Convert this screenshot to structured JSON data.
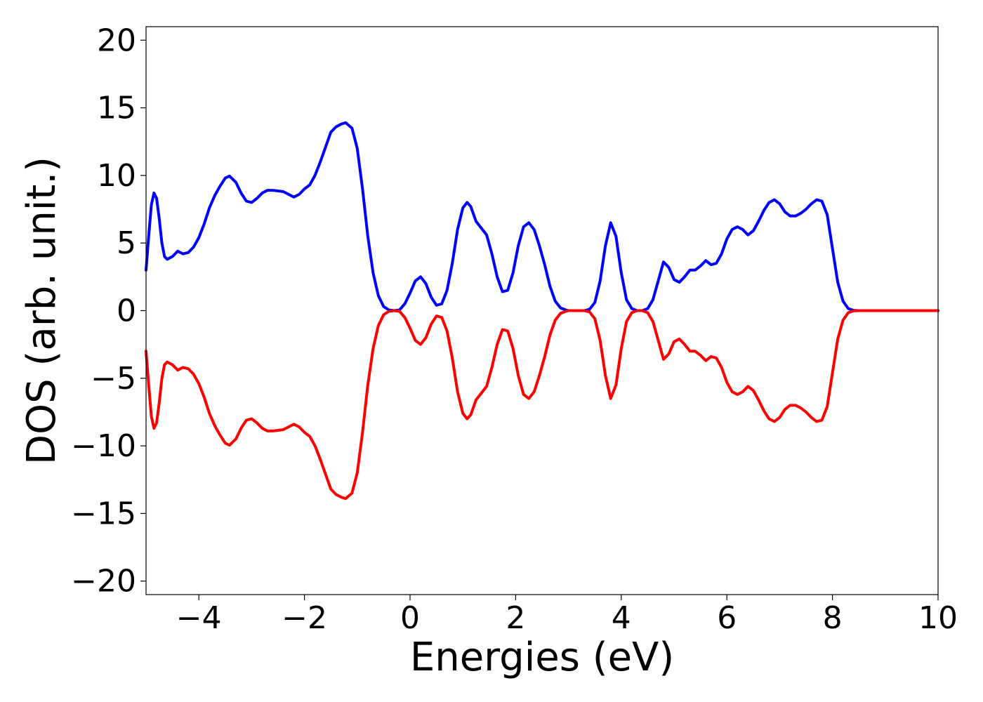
{
  "chart_data": {
    "type": "line",
    "title": "",
    "xlabel": "Energies (eV)",
    "ylabel": "DOS (arb. unit.)",
    "xlim": [
      -5,
      10
    ],
    "ylim": [
      -21,
      21
    ],
    "x_ticks": [
      -4,
      -2,
      0,
      2,
      4,
      6,
      8,
      10
    ],
    "x_tick_labels": [
      "−4",
      "−2",
      "0",
      "2",
      "4",
      "6",
      "8",
      "10"
    ],
    "y_ticks": [
      20,
      15,
      10,
      5,
      0,
      -5,
      -10,
      -15,
      -20
    ],
    "y_tick_labels": [
      "20",
      "15",
      "10",
      "5",
      "0",
      "−5",
      "−10",
      "−15",
      "−20"
    ],
    "grid": false,
    "legend": "none",
    "series": [
      {
        "color": "#0000ff",
        "points": [
          [
            -5.0,
            3.0
          ],
          [
            -4.95,
            5.5
          ],
          [
            -4.9,
            7.8
          ],
          [
            -4.85,
            8.7
          ],
          [
            -4.8,
            8.3
          ],
          [
            -4.75,
            6.8
          ],
          [
            -4.7,
            5.0
          ],
          [
            -4.65,
            4.0
          ],
          [
            -4.6,
            3.8
          ],
          [
            -4.5,
            4.0
          ],
          [
            -4.4,
            4.4
          ],
          [
            -4.3,
            4.2
          ],
          [
            -4.2,
            4.3
          ],
          [
            -4.1,
            4.7
          ],
          [
            -4.0,
            5.4
          ],
          [
            -3.9,
            6.4
          ],
          [
            -3.8,
            7.6
          ],
          [
            -3.7,
            8.5
          ],
          [
            -3.6,
            9.2
          ],
          [
            -3.5,
            9.8
          ],
          [
            -3.42,
            9.95
          ],
          [
            -3.3,
            9.5
          ],
          [
            -3.2,
            8.7
          ],
          [
            -3.1,
            8.1
          ],
          [
            -3.0,
            8.0
          ],
          [
            -2.9,
            8.3
          ],
          [
            -2.8,
            8.7
          ],
          [
            -2.7,
            8.9
          ],
          [
            -2.6,
            8.9
          ],
          [
            -2.5,
            8.85
          ],
          [
            -2.4,
            8.8
          ],
          [
            -2.3,
            8.6
          ],
          [
            -2.2,
            8.4
          ],
          [
            -2.1,
            8.6
          ],
          [
            -2.0,
            9.0
          ],
          [
            -1.9,
            9.3
          ],
          [
            -1.8,
            10.0
          ],
          [
            -1.7,
            11.0
          ],
          [
            -1.6,
            12.1
          ],
          [
            -1.5,
            13.2
          ],
          [
            -1.4,
            13.6
          ],
          [
            -1.3,
            13.8
          ],
          [
            -1.22,
            13.9
          ],
          [
            -1.1,
            13.5
          ],
          [
            -1.0,
            12.0
          ],
          [
            -0.9,
            9.0
          ],
          [
            -0.8,
            5.5
          ],
          [
            -0.7,
            2.8
          ],
          [
            -0.6,
            1.1
          ],
          [
            -0.5,
            0.3
          ],
          [
            -0.4,
            0.05
          ],
          [
            -0.3,
            0.0
          ],
          [
            -0.2,
            0.05
          ],
          [
            -0.1,
            0.5
          ],
          [
            0.0,
            1.3
          ],
          [
            0.1,
            2.2
          ],
          [
            0.2,
            2.5
          ],
          [
            0.3,
            2.0
          ],
          [
            0.4,
            1.0
          ],
          [
            0.5,
            0.4
          ],
          [
            0.6,
            0.5
          ],
          [
            0.7,
            1.5
          ],
          [
            0.8,
            3.5
          ],
          [
            0.9,
            6.0
          ],
          [
            1.0,
            7.6
          ],
          [
            1.08,
            8.0
          ],
          [
            1.15,
            7.7
          ],
          [
            1.25,
            6.6
          ],
          [
            1.35,
            6.1
          ],
          [
            1.45,
            5.6
          ],
          [
            1.55,
            4.2
          ],
          [
            1.65,
            2.5
          ],
          [
            1.75,
            1.4
          ],
          [
            1.85,
            1.5
          ],
          [
            1.95,
            2.8
          ],
          [
            2.05,
            4.8
          ],
          [
            2.15,
            6.2
          ],
          [
            2.25,
            6.5
          ],
          [
            2.35,
            6.0
          ],
          [
            2.45,
            4.8
          ],
          [
            2.55,
            3.4
          ],
          [
            2.65,
            1.8
          ],
          [
            2.75,
            0.7
          ],
          [
            2.85,
            0.2
          ],
          [
            2.95,
            0.05
          ],
          [
            3.0,
            0.0
          ],
          [
            3.1,
            0.0
          ],
          [
            3.2,
            0.0
          ],
          [
            3.3,
            0.0
          ],
          [
            3.4,
            0.1
          ],
          [
            3.5,
            0.6
          ],
          [
            3.6,
            2.2
          ],
          [
            3.7,
            4.8
          ],
          [
            3.8,
            6.5
          ],
          [
            3.9,
            5.5
          ],
          [
            4.0,
            2.8
          ],
          [
            4.1,
            0.8
          ],
          [
            4.2,
            0.15
          ],
          [
            4.3,
            0.0
          ],
          [
            4.4,
            0.0
          ],
          [
            4.5,
            0.15
          ],
          [
            4.6,
            0.8
          ],
          [
            4.7,
            2.2
          ],
          [
            4.8,
            3.6
          ],
          [
            4.9,
            3.2
          ],
          [
            5.0,
            2.3
          ],
          [
            5.1,
            2.1
          ],
          [
            5.2,
            2.5
          ],
          [
            5.3,
            3.0
          ],
          [
            5.4,
            3.0
          ],
          [
            5.5,
            3.3
          ],
          [
            5.6,
            3.7
          ],
          [
            5.7,
            3.4
          ],
          [
            5.8,
            3.5
          ],
          [
            5.9,
            4.2
          ],
          [
            6.0,
            5.3
          ],
          [
            6.1,
            6.0
          ],
          [
            6.2,
            6.2
          ],
          [
            6.3,
            6.0
          ],
          [
            6.4,
            5.6
          ],
          [
            6.5,
            5.9
          ],
          [
            6.6,
            6.6
          ],
          [
            6.7,
            7.4
          ],
          [
            6.8,
            8.0
          ],
          [
            6.9,
            8.2
          ],
          [
            7.0,
            7.9
          ],
          [
            7.1,
            7.3
          ],
          [
            7.2,
            7.0
          ],
          [
            7.3,
            7.0
          ],
          [
            7.4,
            7.2
          ],
          [
            7.5,
            7.5
          ],
          [
            7.6,
            7.9
          ],
          [
            7.7,
            8.2
          ],
          [
            7.8,
            8.1
          ],
          [
            7.9,
            7.1
          ],
          [
            8.0,
            4.6
          ],
          [
            8.1,
            2.1
          ],
          [
            8.2,
            0.7
          ],
          [
            8.3,
            0.15
          ],
          [
            8.4,
            0.02
          ],
          [
            8.5,
            0.0
          ],
          [
            9.0,
            0.0
          ],
          [
            10.0,
            0.0
          ]
        ]
      },
      {
        "color": "#ff0000",
        "points": [
          [
            -5.0,
            -3.0
          ],
          [
            -4.95,
            -5.5
          ],
          [
            -4.9,
            -7.8
          ],
          [
            -4.85,
            -8.7
          ],
          [
            -4.8,
            -8.3
          ],
          [
            -4.75,
            -6.8
          ],
          [
            -4.7,
            -5.0
          ],
          [
            -4.65,
            -4.0
          ],
          [
            -4.6,
            -3.8
          ],
          [
            -4.5,
            -4.0
          ],
          [
            -4.4,
            -4.4
          ],
          [
            -4.3,
            -4.2
          ],
          [
            -4.2,
            -4.3
          ],
          [
            -4.1,
            -4.7
          ],
          [
            -4.0,
            -5.4
          ],
          [
            -3.9,
            -6.4
          ],
          [
            -3.8,
            -7.6
          ],
          [
            -3.7,
            -8.5
          ],
          [
            -3.6,
            -9.2
          ],
          [
            -3.5,
            -9.8
          ],
          [
            -3.42,
            -9.95
          ],
          [
            -3.3,
            -9.5
          ],
          [
            -3.2,
            -8.7
          ],
          [
            -3.1,
            -8.1
          ],
          [
            -3.0,
            -8.0
          ],
          [
            -2.9,
            -8.3
          ],
          [
            -2.8,
            -8.7
          ],
          [
            -2.7,
            -8.9
          ],
          [
            -2.6,
            -8.9
          ],
          [
            -2.5,
            -8.85
          ],
          [
            -2.4,
            -8.8
          ],
          [
            -2.3,
            -8.6
          ],
          [
            -2.2,
            -8.4
          ],
          [
            -2.1,
            -8.6
          ],
          [
            -2.0,
            -9.0
          ],
          [
            -1.9,
            -9.3
          ],
          [
            -1.8,
            -10.0
          ],
          [
            -1.7,
            -11.0
          ],
          [
            -1.6,
            -12.1
          ],
          [
            -1.5,
            -13.2
          ],
          [
            -1.4,
            -13.6
          ],
          [
            -1.3,
            -13.8
          ],
          [
            -1.22,
            -13.9
          ],
          [
            -1.1,
            -13.5
          ],
          [
            -1.0,
            -12.0
          ],
          [
            -0.9,
            -9.0
          ],
          [
            -0.8,
            -5.5
          ],
          [
            -0.7,
            -2.8
          ],
          [
            -0.6,
            -1.1
          ],
          [
            -0.5,
            -0.3
          ],
          [
            -0.4,
            -0.05
          ],
          [
            -0.3,
            0.0
          ],
          [
            -0.2,
            -0.05
          ],
          [
            -0.1,
            -0.5
          ],
          [
            0.0,
            -1.3
          ],
          [
            0.1,
            -2.2
          ],
          [
            0.2,
            -2.5
          ],
          [
            0.3,
            -2.0
          ],
          [
            0.4,
            -1.0
          ],
          [
            0.5,
            -0.4
          ],
          [
            0.6,
            -0.5
          ],
          [
            0.7,
            -1.5
          ],
          [
            0.8,
            -3.5
          ],
          [
            0.9,
            -6.0
          ],
          [
            1.0,
            -7.6
          ],
          [
            1.08,
            -8.0
          ],
          [
            1.15,
            -7.7
          ],
          [
            1.25,
            -6.6
          ],
          [
            1.35,
            -6.1
          ],
          [
            1.45,
            -5.6
          ],
          [
            1.55,
            -4.2
          ],
          [
            1.65,
            -2.5
          ],
          [
            1.75,
            -1.4
          ],
          [
            1.85,
            -1.5
          ],
          [
            1.95,
            -2.8
          ],
          [
            2.05,
            -4.8
          ],
          [
            2.15,
            -6.2
          ],
          [
            2.25,
            -6.5
          ],
          [
            2.35,
            -6.0
          ],
          [
            2.45,
            -4.8
          ],
          [
            2.55,
            -3.4
          ],
          [
            2.65,
            -1.8
          ],
          [
            2.75,
            -0.7
          ],
          [
            2.85,
            -0.2
          ],
          [
            2.95,
            -0.05
          ],
          [
            3.0,
            0.0
          ],
          [
            3.1,
            0.0
          ],
          [
            3.2,
            0.0
          ],
          [
            3.3,
            0.0
          ],
          [
            3.4,
            -0.1
          ],
          [
            3.5,
            -0.6
          ],
          [
            3.6,
            -2.2
          ],
          [
            3.7,
            -4.8
          ],
          [
            3.8,
            -6.5
          ],
          [
            3.9,
            -5.5
          ],
          [
            4.0,
            -2.8
          ],
          [
            4.1,
            -0.8
          ],
          [
            4.2,
            -0.15
          ],
          [
            4.3,
            0.0
          ],
          [
            4.4,
            0.0
          ],
          [
            4.5,
            -0.15
          ],
          [
            4.6,
            -0.8
          ],
          [
            4.7,
            -2.2
          ],
          [
            4.8,
            -3.6
          ],
          [
            4.9,
            -3.2
          ],
          [
            5.0,
            -2.3
          ],
          [
            5.1,
            -2.1
          ],
          [
            5.2,
            -2.5
          ],
          [
            5.3,
            -3.0
          ],
          [
            5.4,
            -3.0
          ],
          [
            5.5,
            -3.3
          ],
          [
            5.6,
            -3.7
          ],
          [
            5.7,
            -3.4
          ],
          [
            5.8,
            -3.5
          ],
          [
            5.9,
            -4.2
          ],
          [
            6.0,
            -5.3
          ],
          [
            6.1,
            -6.0
          ],
          [
            6.2,
            -6.2
          ],
          [
            6.3,
            -6.0
          ],
          [
            6.4,
            -5.6
          ],
          [
            6.5,
            -5.9
          ],
          [
            6.6,
            -6.6
          ],
          [
            6.7,
            -7.4
          ],
          [
            6.8,
            -8.0
          ],
          [
            6.9,
            -8.2
          ],
          [
            7.0,
            -7.9
          ],
          [
            7.1,
            -7.3
          ],
          [
            7.2,
            -7.0
          ],
          [
            7.3,
            -7.0
          ],
          [
            7.4,
            -7.2
          ],
          [
            7.5,
            -7.5
          ],
          [
            7.6,
            -7.9
          ],
          [
            7.7,
            -8.2
          ],
          [
            7.8,
            -8.1
          ],
          [
            7.9,
            -7.1
          ],
          [
            8.0,
            -4.6
          ],
          [
            8.1,
            -2.1
          ],
          [
            8.2,
            -0.7
          ],
          [
            8.3,
            -0.15
          ],
          [
            8.4,
            -0.02
          ],
          [
            8.5,
            0.0
          ],
          [
            9.0,
            0.0
          ],
          [
            10.0,
            0.0
          ]
        ]
      }
    ]
  }
}
